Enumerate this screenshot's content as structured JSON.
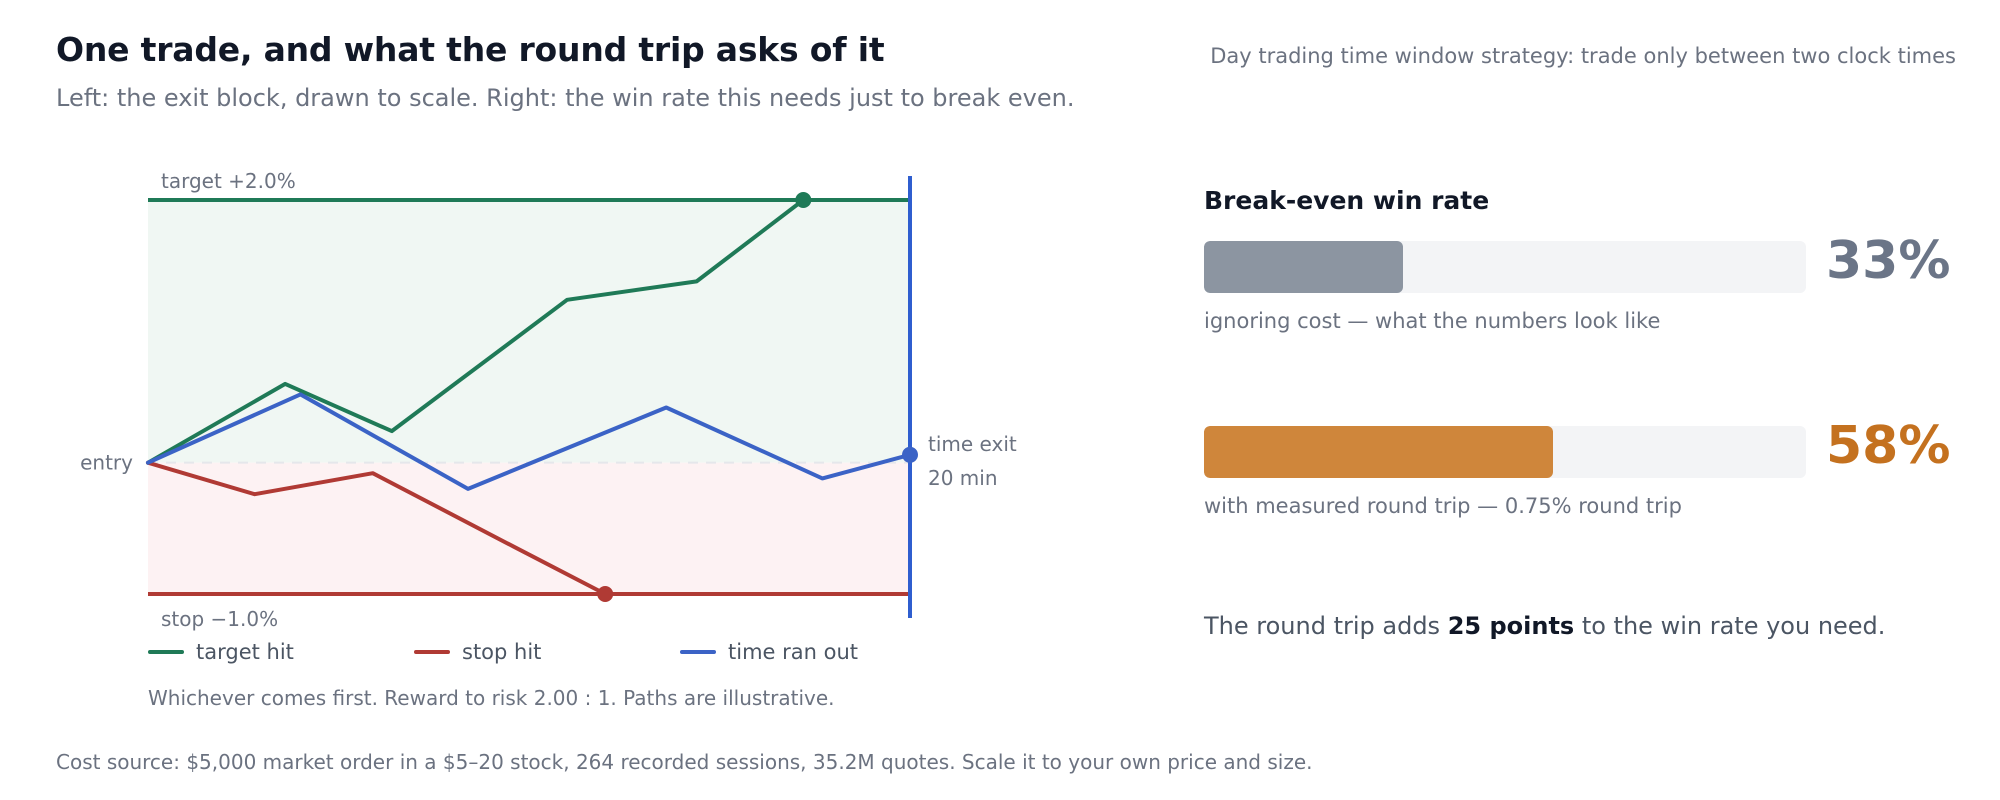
{
  "header": {
    "title": "One trade, and what the round trip asks of it",
    "subtitle": "Left: the exit block, drawn to scale. Right: the win rate this needs just to break even.",
    "context": "Day trading time window strategy: trade only between two clock times"
  },
  "chart_data": [
    {
      "type": "line",
      "ylim": [
        -1.2,
        2.1
      ],
      "xlim": [
        0,
        20
      ],
      "reference_lines": {
        "target": {
          "value": 2.0,
          "label": "target +2.0%"
        },
        "entry": {
          "value": 0,
          "label": "entry"
        },
        "stop": {
          "value": -1.0,
          "label": "stop −1.0%"
        },
        "time_exit": {
          "value": 20,
          "label_line1": "time exit",
          "label_line2": "20 min"
        }
      },
      "series": [
        {
          "name": "target hit",
          "points": [
            [
              0,
              0
            ],
            [
              3.6,
              0.6
            ],
            [
              6.4,
              0.24
            ],
            [
              11,
              1.24
            ],
            [
              14.4,
              1.38
            ],
            [
              17.2,
              2.0
            ]
          ]
        },
        {
          "name": "stop hit",
          "points": [
            [
              0,
              0
            ],
            [
              2.8,
              -0.24
            ],
            [
              5.9,
              -0.08
            ],
            [
              9.6,
              -0.64
            ],
            [
              12,
              -1.0
            ]
          ]
        },
        {
          "name": "time ran out",
          "points": [
            [
              0,
              0
            ],
            [
              4,
              0.52
            ],
            [
              8.4,
              -0.2
            ],
            [
              13.6,
              0.42
            ],
            [
              17.7,
              -0.12
            ],
            [
              20,
              0.06
            ]
          ]
        }
      ],
      "note": "Whichever comes first. Reward to risk 2.00 : 1. Paths are illustrative."
    },
    {
      "type": "bar",
      "title": "Break-even win rate",
      "xlim": [
        0,
        100
      ],
      "bars": [
        {
          "value": 33,
          "display": "33%",
          "caption": "ignoring cost — what the numbers look like"
        },
        {
          "value": 58,
          "display": "58%",
          "caption": "with measured round trip — 0.75% round trip"
        }
      ]
    }
  ],
  "colors": {
    "target": "#1f7a57",
    "stop": "#b03a34",
    "time": "#3b63c6",
    "time_line": "#2f5ecf",
    "target_zone": "#f0f7f3",
    "stop_zone": "#fdf2f3",
    "bar_gray": "#8c95a1",
    "bar_orange": "#cf863b",
    "value_gray": "#6b7587",
    "value_orange": "#c4711f"
  },
  "summary": {
    "prefix": "The round trip adds ",
    "highlight": "25 points",
    "suffix": " to the win rate you need."
  },
  "footer": "Cost source: $5,000 market order in a $5–20 stock, 264 recorded sessions, 35.2M quotes. Scale it to your own price and size."
}
